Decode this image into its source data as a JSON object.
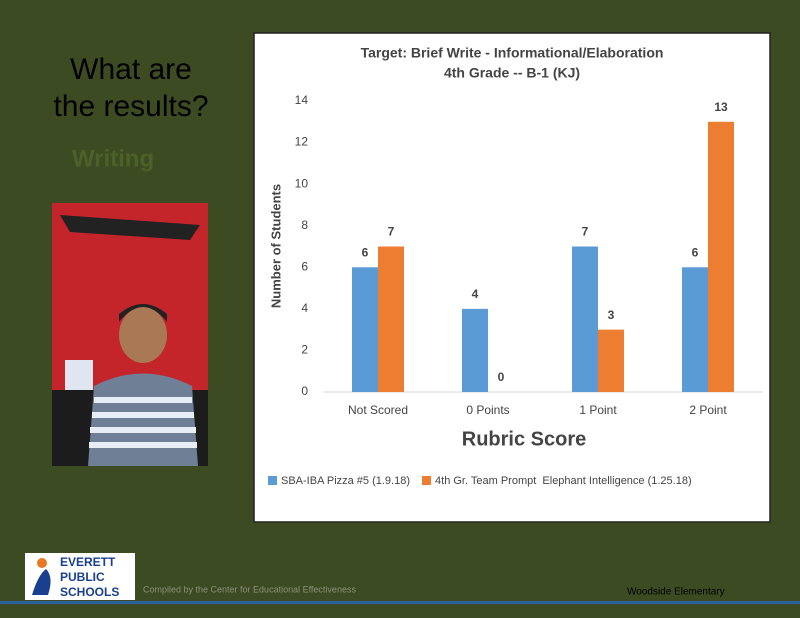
{
  "slide": {
    "heading": [
      "What are",
      "the results?"
    ],
    "subheading": "Writing",
    "logo": [
      "EVERETT",
      "PUBLIC",
      "SCHOOLS"
    ],
    "credit": "Compiled by the Center for Educational Effectiveness",
    "school": "Woodside Elementary"
  },
  "chart_data": {
    "type": "bar",
    "title": [
      "Target: Brief Write - Informational/Elaboration",
      "4th Grade -- B-1 (KJ)"
    ],
    "x_label": "Rubric Score",
    "y_label": "Number of Students",
    "categories": [
      "Not Scored",
      "0 Points",
      "1 Point",
      "2 Point"
    ],
    "series": [
      {
        "name": "SBA-IBA Pizza #5 (1.9.18)",
        "color": "#5b9bd5",
        "values": [
          6,
          4,
          7,
          6
        ]
      },
      {
        "name": "4th Gr. Team Prompt  Elephant Intelligence (1.25.18)",
        "color": "#ed7d31",
        "values": [
          7,
          0,
          3,
          13
        ]
      }
    ],
    "ylim": [
      0,
      14
    ],
    "yticks": [
      0,
      2,
      4,
      6,
      8,
      10,
      12,
      14
    ],
    "grid": false,
    "legend": "bottom"
  }
}
